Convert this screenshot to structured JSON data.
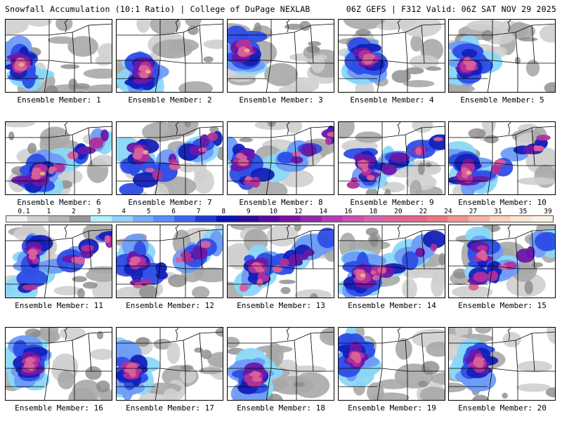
{
  "header": {
    "left": "Snowfall Accumulation (10:1 Ratio) | College of DuPage NEXLAB",
    "right": "06Z GEFS | F312 Valid: 06Z SAT NOV 29 2025"
  },
  "colorbar": {
    "labels": [
      "0.1",
      "1",
      "2",
      "3",
      "4",
      "5",
      "6",
      "7",
      "8",
      "9",
      "10",
      "12",
      "14",
      "16",
      "18",
      "20",
      "22",
      "24",
      "27",
      "31",
      "35",
      "39"
    ],
    "colors": [
      "#f0f0f0",
      "#d2d2d2",
      "#b4b4b4",
      "#969696",
      "#b4f0fa",
      "#96d2fa",
      "#78aafa",
      "#5a8cfa",
      "#3c64f0",
      "#1e3cd2",
      "#0a14b4",
      "#320a96",
      "#5a0aa0",
      "#7814a0",
      "#9628aa",
      "#b43cb4",
      "#c850b4",
      "#d264aa",
      "#dc6496",
      "#e6648c",
      "#e67882",
      "#f0968c",
      "#f5b4a0",
      "#fad2be",
      "#fae6d2",
      "#fff0e6"
    ]
  },
  "panel_label_prefix": "Ensemble Member:",
  "members": [
    {
      "n": "1"
    },
    {
      "n": "2"
    },
    {
      "n": "3"
    },
    {
      "n": "4"
    },
    {
      "n": "5"
    },
    {
      "n": "6"
    },
    {
      "n": "7"
    },
    {
      "n": "8"
    },
    {
      "n": "9"
    },
    {
      "n": "10"
    },
    {
      "n": "11"
    },
    {
      "n": "12"
    },
    {
      "n": "13"
    },
    {
      "n": "14"
    },
    {
      "n": "15"
    },
    {
      "n": "16"
    },
    {
      "n": "17"
    },
    {
      "n": "18"
    },
    {
      "n": "19"
    },
    {
      "n": "20"
    }
  ],
  "map_colors": {
    "gray_light": "#cfcfcf",
    "gray_mid": "#a8a8a8",
    "gray_dark": "#8a8a8a",
    "cyan": "#8ad8f8",
    "blue_light": "#6f9cf5",
    "blue": "#2e4ee6",
    "blue_dark": "#1420b8",
    "purple": "#6a18a8",
    "magenta": "#b0309c",
    "pink": "#d8609a",
    "salmon": "#eca488",
    "border": "#000000"
  }
}
